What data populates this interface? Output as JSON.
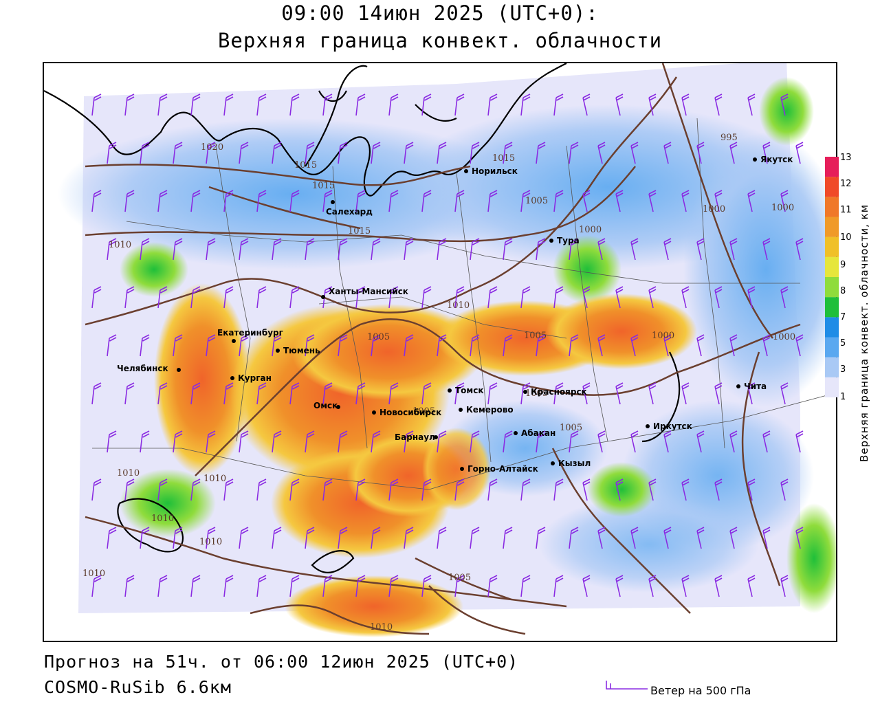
{
  "header": {
    "title_line1": "09:00 14июн 2025 (UTC+0):",
    "title_line2": "Верхняя граница конвект. облачности"
  },
  "footer": {
    "forecast": "Прогноз на 51ч. от 06:00 12июн 2025 (UTC+0)",
    "model": "COSMO-RuSib 6.6км",
    "wind_legend": "Ветер на 500 гПа"
  },
  "colorbar": {
    "title": "Верхняя граница конвект. облачности, км",
    "ticks": [
      "1",
      "3",
      "5",
      "7",
      "8",
      "9",
      "10",
      "11",
      "12",
      "13"
    ],
    "colors": [
      "#e6e6fa",
      "#a9c9f5",
      "#5aa8f0",
      "#1f8ce6",
      "#1fbf3a",
      "#8fdc3c",
      "#e6e63c",
      "#f0c028",
      "#f09a28",
      "#f07828",
      "#f04a28",
      "#e61e5a"
    ]
  },
  "cities": [
    {
      "name": "Якутск"
    },
    {
      "name": "Норильск"
    },
    {
      "name": "Салехард"
    },
    {
      "name": "Тура"
    },
    {
      "name": "Ханты-Мансийск"
    },
    {
      "name": "Екатеринбург"
    },
    {
      "name": "Тюмень"
    },
    {
      "name": "Челябинск"
    },
    {
      "name": "Курган"
    },
    {
      "name": "Омск"
    },
    {
      "name": "Новосибирск"
    },
    {
      "name": "Томск"
    },
    {
      "name": "Кемерово"
    },
    {
      "name": "Красноярск"
    },
    {
      "name": "Барнаул"
    },
    {
      "name": "Абакан"
    },
    {
      "name": "Иркутск"
    },
    {
      "name": "Чита"
    },
    {
      "name": "Кызыл"
    },
    {
      "name": "Горно-Алтайск"
    }
  ],
  "isobars": [
    "1020",
    "1015",
    "1015",
    "1015",
    "1015",
    "1010",
    "1010",
    "1010",
    "1010",
    "1010",
    "1010",
    "1010",
    "1010",
    "1005",
    "1005",
    "1005",
    "1005",
    "1005",
    "1005",
    "1005",
    "1000",
    "1000",
    "1000",
    "1000",
    "1000",
    "995"
  ]
}
